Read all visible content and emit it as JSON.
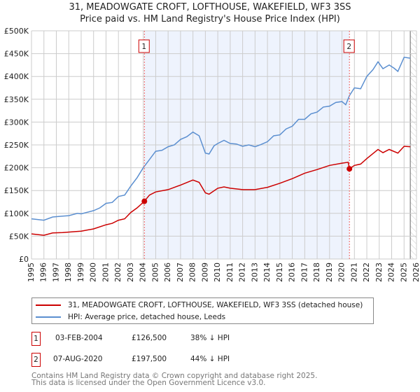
{
  "title_line1": "31, MEADOWGATE CROFT, LOFTHOUSE, WAKEFIELD, WF3 3SS",
  "title_line2": "Price paid vs. HM Land Registry's House Price Index (HPI)",
  "chart_data": {
    "type": "line",
    "xlim": [
      1995,
      2026
    ],
    "ylim": [
      0,
      500000
    ],
    "x_ticks": [
      "1995",
      "1996",
      "1997",
      "1998",
      "1999",
      "2000",
      "2001",
      "2002",
      "2003",
      "2004",
      "2005",
      "2006",
      "2007",
      "2008",
      "2009",
      "2010",
      "2011",
      "2012",
      "2013",
      "2014",
      "2015",
      "2016",
      "2017",
      "2018",
      "2019",
      "2020",
      "2021",
      "2022",
      "2023",
      "2024",
      "2025",
      "2026"
    ],
    "y_ticks": [
      {
        "v": 0,
        "label": "£0"
      },
      {
        "v": 50000,
        "label": "£50K"
      },
      {
        "v": 100000,
        "label": "£100K"
      },
      {
        "v": 150000,
        "label": "£150K"
      },
      {
        "v": 200000,
        "label": "£200K"
      },
      {
        "v": 250000,
        "label": "£250K"
      },
      {
        "v": 300000,
        "label": "£300K"
      },
      {
        "v": 350000,
        "label": "£350K"
      },
      {
        "v": 400000,
        "label": "£400K"
      },
      {
        "v": 450000,
        "label": "£450K"
      },
      {
        "v": 500000,
        "label": "£500K"
      }
    ],
    "grid": true,
    "shaded_range": [
      2004.09,
      2020.6
    ],
    "hatched_from": 2025.5,
    "series": [
      {
        "name": "31, MEADOWGATE CROFT, LOFTHOUSE, WAKEFIELD, WF3 3SS (detached house)",
        "color": "#cc0000",
        "x": [
          1995,
          1996,
          1996.7,
          1997.5,
          1998.5,
          1999,
          2000,
          2001,
          2001.5,
          2002,
          2002.5,
          2003,
          2003.5,
          2004.09,
          2004.5,
          2005,
          2006,
          2007,
          2008,
          2008.5,
          2009,
          2009.3,
          2010,
          2010.5,
          2011,
          2012,
          2013,
          2014,
          2015,
          2016,
          2017,
          2018,
          2019,
          2020,
          2020.5,
          2020.6,
          2021,
          2021.5,
          2022,
          2022.9,
          2023.3,
          2023.8,
          2024.5,
          2025,
          2025.5
        ],
        "y": [
          55000,
          52000,
          57000,
          58000,
          60000,
          61000,
          66000,
          75000,
          78000,
          85000,
          88000,
          102000,
          112000,
          126500,
          140000,
          147000,
          152000,
          162000,
          173000,
          168000,
          145000,
          142000,
          155000,
          158000,
          155000,
          152000,
          152000,
          157000,
          166000,
          176000,
          188000,
          196000,
          205000,
          210000,
          212000,
          197500,
          205000,
          208000,
          220000,
          240000,
          233000,
          240000,
          232000,
          247000,
          246000
        ]
      },
      {
        "name": "HPI: Average price, detached house, Leeds",
        "color": "#5b8fd0",
        "x": [
          1995,
          1996,
          1996.7,
          1997.5,
          1998,
          1998.7,
          1999,
          2000,
          2000.5,
          2001,
          2001.5,
          2002,
          2002.5,
          2003,
          2003.5,
          2004,
          2004.5,
          2005,
          2005.5,
          2006,
          2006.5,
          2007,
          2007.5,
          2008,
          2008.5,
          2009,
          2009.3,
          2009.7,
          2010,
          2010.5,
          2011,
          2011.5,
          2012,
          2012.5,
          2013,
          2013.5,
          2014,
          2014.5,
          2015,
          2015.5,
          2016,
          2016.5,
          2017,
          2017.5,
          2018,
          2018.5,
          2019,
          2019.5,
          2020,
          2020.3,
          2020.6,
          2021,
          2021.5,
          2022,
          2022.5,
          2022.9,
          2023.3,
          2023.8,
          2024.2,
          2024.5,
          2025,
          2025.5
        ],
        "y": [
          88000,
          85000,
          92000,
          94000,
          95000,
          100000,
          99000,
          106000,
          112000,
          122000,
          124000,
          137000,
          140000,
          160000,
          178000,
          200000,
          218000,
          236000,
          238000,
          246000,
          250000,
          262000,
          268000,
          278000,
          270000,
          232000,
          230000,
          248000,
          253000,
          260000,
          253000,
          252000,
          247000,
          250000,
          246000,
          251000,
          257000,
          270000,
          272000,
          285000,
          291000,
          306000,
          306000,
          318000,
          322000,
          333000,
          335000,
          343000,
          345000,
          338000,
          358000,
          375000,
          373000,
          400000,
          415000,
          432000,
          417000,
          425000,
          418000,
          411000,
          442000,
          440000
        ]
      }
    ],
    "annotations": [
      {
        "label": "1",
        "x": 2004.09,
        "y": 126500
      },
      {
        "label": "2",
        "x": 2020.6,
        "y": 197500
      }
    ]
  },
  "legend": {
    "property": "31, MEADOWGATE CROFT, LOFTHOUSE, WAKEFIELD, WF3 3SS (detached house)",
    "hpi": "HPI: Average price, detached house, Leeds"
  },
  "transactions": [
    {
      "num": "1",
      "date": "03-FEB-2004",
      "price": "£126,500",
      "diff": "38% ↓ HPI"
    },
    {
      "num": "2",
      "date": "07-AUG-2020",
      "price": "£197,500",
      "diff": "44% ↓ HPI"
    }
  ],
  "footer_line1": "Contains HM Land Registry data © Crown copyright and database right 2025.",
  "footer_line2": "This data is licensed under the Open Government Licence v3.0."
}
